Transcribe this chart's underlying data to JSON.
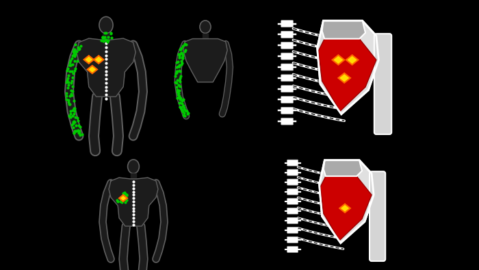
{
  "bg_color": "#000000",
  "fig_width": 7.0,
  "fig_height": 3.94,
  "dpi": 100,
  "body_color": "#1c1c1c",
  "body_outline": "#606060",
  "spine_dot_color": "#ffffff",
  "muscle_red": "#cc0000",
  "muscle_gray": "#aaaaaa",
  "scapula_white": "#e0e0e0",
  "rib_white": "#d0d0d0",
  "trigger_yellow": "#ffdd00",
  "trigger_orange": "#ff6600",
  "green_dots": "#00cc00"
}
